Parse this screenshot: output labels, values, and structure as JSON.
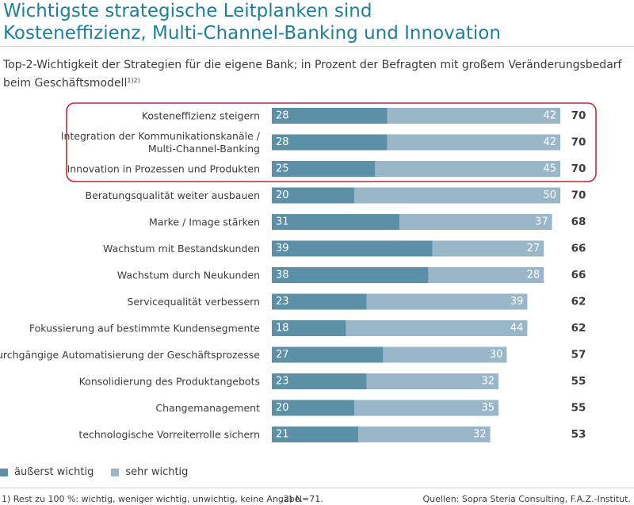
{
  "title_line1": "Wichtigste strategische Leitplanken sind",
  "title_line2": "Kosteneffizienz, Multi-Channel-Banking und Innovation",
  "subtitle_main": "Top-2-Wichtigkeit der Strategien für die eigene Bank; in Prozent der Befragten mit großem Veränderungsbedarf beim Geschäftsmodell",
  "subtitle_sup": "1)2)",
  "colors": {
    "dark": "#5b90a6",
    "light": "#9ab6c9",
    "highlight": "#c0283a",
    "title": "#1c7f9c"
  },
  "chart_data": {
    "type": "bar",
    "orientation": "horizontal",
    "stacked": true,
    "categories": [
      "Kosteneffizienz steigern",
      "Integration der Kommunikationskanäle / Multi-Channel-Banking",
      "Innovation in Prozessen und Produkten",
      "Beratungsqualität weiter ausbauen",
      "Marke / Image stärken",
      "Wachstum mit Bestandskunden",
      "Wachstum durch Neukunden",
      "Servicequalität verbessern",
      "Fokussierung auf bestimmte Kundensegmente",
      "durchgängige Automatisierung der Geschäftsprozesse",
      "Konsolidierung des Produktangebots",
      "Changemanagement",
      "technologische Vorreiterrolle sichern"
    ],
    "category_lines": [
      [
        "Kosteneffizienz steigern"
      ],
      [
        "Integration der Kommunikationskanäle /",
        "Multi-Channel-Banking"
      ],
      [
        "Innovation in Prozessen und Produkten"
      ],
      [
        "Beratungsqualität weiter ausbauen"
      ],
      [
        "Marke / Image stärken"
      ],
      [
        "Wachstum mit Bestandskunden"
      ],
      [
        "Wachstum durch Neukunden"
      ],
      [
        "Servicequalität verbessern"
      ],
      [
        "Fokussierung auf bestimmte Kundensegmente"
      ],
      [
        "durchgängige Automatisierung der Geschäftsprozesse"
      ],
      [
        "Konsolidierung des Produktangebots"
      ],
      [
        "Changemanagement"
      ],
      [
        "technologische Vorreiterrolle sichern"
      ]
    ],
    "series": [
      {
        "name": "äußerst wichtig",
        "values": [
          28,
          28,
          25,
          20,
          31,
          39,
          38,
          23,
          18,
          27,
          23,
          20,
          21
        ]
      },
      {
        "name": "sehr wichtig",
        "values": [
          42,
          42,
          45,
          50,
          37,
          27,
          28,
          39,
          44,
          30,
          32,
          35,
          32
        ]
      }
    ],
    "totals": [
      70,
      70,
      70,
      70,
      68,
      66,
      66,
      62,
      62,
      57,
      55,
      55,
      53
    ],
    "highlighted_rows": [
      0,
      1,
      2
    ],
    "xlim": [
      0,
      70
    ],
    "legend_position": "bottom-left",
    "grid": false
  },
  "footnotes": {
    "note1": "1)   Rest zu 100 %: wichtig, weniger wichtig, unwichtig, keine Angabe.",
    "note2": "2)   N=71.",
    "source": "Quellen: Sopra Steria Consulting, F.A.Z.-Institut."
  }
}
